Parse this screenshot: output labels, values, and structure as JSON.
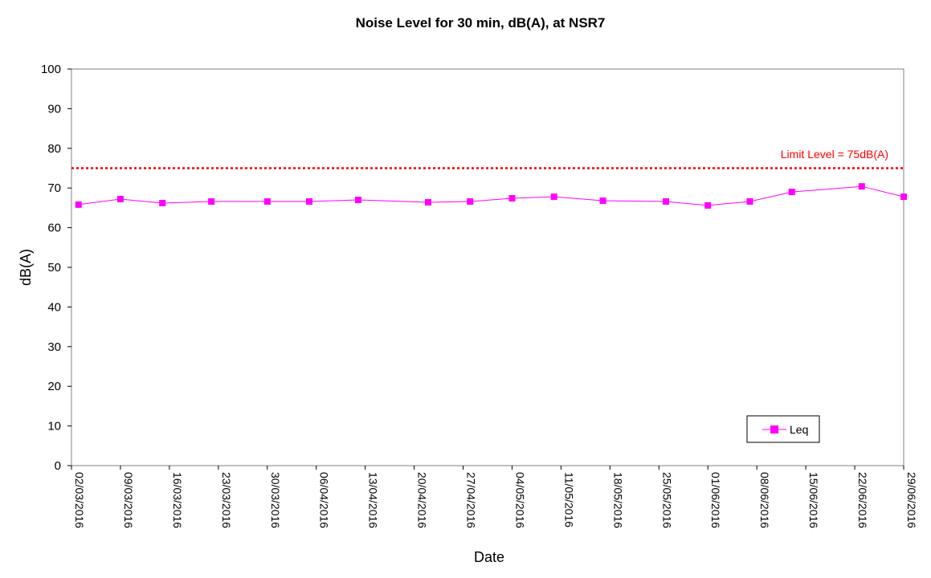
{
  "chart_data": {
    "type": "line",
    "title": "Noise Level for 30 min, dB(A), at NSR7",
    "xlabel": "Date",
    "ylabel": "dB(A)",
    "ylim": [
      0,
      100
    ],
    "yticks": [
      0,
      10,
      20,
      30,
      40,
      50,
      60,
      70,
      80,
      90,
      100
    ],
    "xlim": [
      "2016-03-02",
      "2016-06-29"
    ],
    "x_tick_labels": [
      "02/03/2016",
      "09/03/2016",
      "16/03/2016",
      "23/03/2016",
      "30/03/2016",
      "06/04/2016",
      "13/04/2016",
      "20/04/2016",
      "27/04/2016",
      "04/05/2016",
      "11/05/2016",
      "18/05/2016",
      "25/05/2016",
      "01/06/2016",
      "08/06/2016",
      "15/06/2016",
      "22/06/2016",
      "29/06/2016"
    ],
    "x_tick_dates": [
      "2016-03-02",
      "2016-03-09",
      "2016-03-16",
      "2016-03-23",
      "2016-03-30",
      "2016-04-06",
      "2016-04-13",
      "2016-04-20",
      "2016-04-27",
      "2016-05-04",
      "2016-05-11",
      "2016-05-18",
      "2016-05-25",
      "2016-06-01",
      "2016-06-08",
      "2016-06-15",
      "2016-06-22",
      "2016-06-29"
    ],
    "series": [
      {
        "name": "Leq",
        "color": "#ff00ff",
        "x": [
          "2016-03-03",
          "2016-03-09",
          "2016-03-15",
          "2016-03-22",
          "2016-03-30",
          "2016-04-05",
          "2016-04-12",
          "2016-04-22",
          "2016-04-28",
          "2016-05-04",
          "2016-05-10",
          "2016-05-17",
          "2016-05-26",
          "2016-06-01",
          "2016-06-07",
          "2016-06-13",
          "2016-06-23",
          "2016-06-29"
        ],
        "values": [
          65.8,
          67.2,
          66.2,
          66.6,
          66.6,
          66.6,
          67.0,
          66.4,
          66.6,
          67.4,
          67.8,
          66.8,
          66.6,
          65.6,
          66.6,
          69.0,
          70.4,
          67.8
        ]
      }
    ],
    "limit": {
      "value": 75,
      "label": "Limit Level = 75dB(A)",
      "color": "#ff0000"
    },
    "legend": {
      "position": "bottom-right"
    },
    "grid": false
  }
}
